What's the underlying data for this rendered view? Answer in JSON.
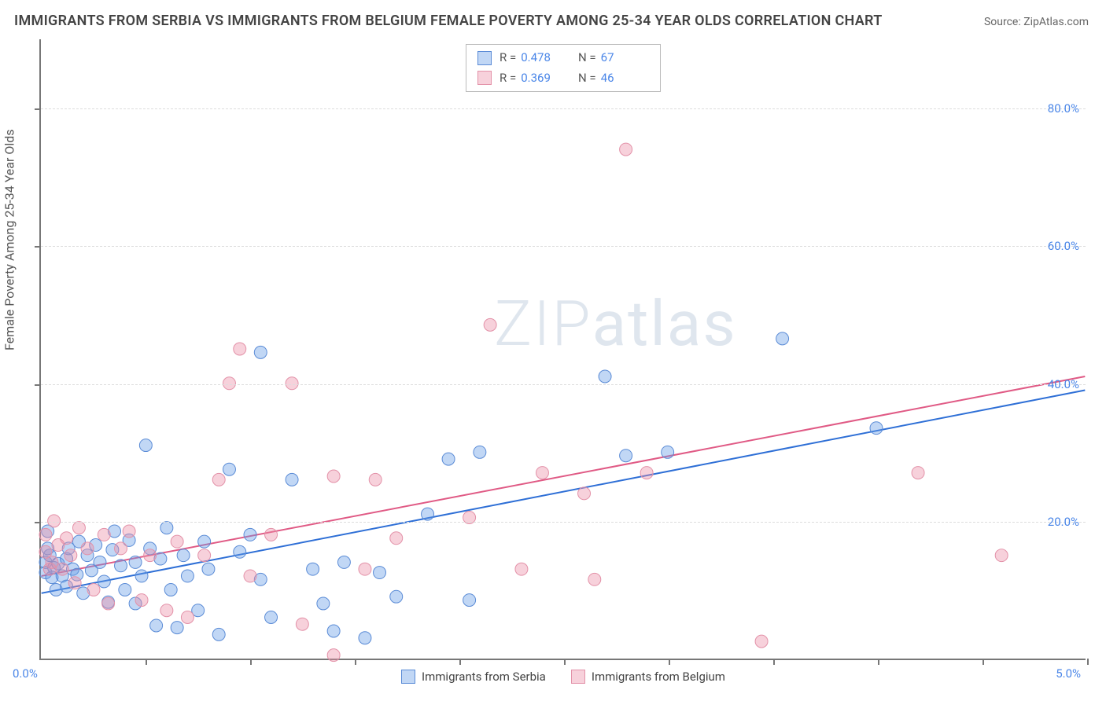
{
  "title": "IMMIGRANTS FROM SERBIA VS IMMIGRANTS FROM BELGIUM FEMALE POVERTY AMONG 25-34 YEAR OLDS CORRELATION CHART",
  "source_label": "Source:",
  "source_value": "ZipAtlas.com",
  "watermark": "ZIPatlas",
  "chart": {
    "type": "scatter",
    "background_color": "#ffffff",
    "grid_color": "#dddddd",
    "axis_color": "#777777",
    "tick_label_color": "#4a86e8",
    "xlim": [
      0.0,
      5.0
    ],
    "ylim": [
      0.0,
      90.0
    ],
    "x_ticks_minor": [
      0.5,
      1.0,
      1.5,
      2.0,
      2.5,
      3.0,
      3.5,
      4.0,
      4.5,
      5.0
    ],
    "x_tick_labels": {
      "start": "0.0%",
      "end": "5.0%"
    },
    "y_gridlines": [
      20,
      40,
      60,
      80
    ],
    "y_tick_labels": [
      "20.0%",
      "40.0%",
      "60.0%",
      "80.0%"
    ],
    "y_axis_label": "Female Poverty Among 25-34 Year Olds",
    "marker_radius": 8,
    "marker_opacity": 0.45,
    "line_width": 2,
    "title_fontsize": 18,
    "label_fontsize": 16,
    "tick_fontsize": 15
  },
  "series": [
    {
      "id": "serbia",
      "label": "Immigrants from Serbia",
      "color_fill": "rgba(100,155,230,0.40)",
      "color_stroke": "#5a8bd6",
      "line_color": "#2e6fd6",
      "R": "0.478",
      "N": "67",
      "trend": {
        "x1": 0.0,
        "y1": 9.5,
        "x2": 5.0,
        "y2": 39.0
      },
      "points": [
        [
          0.02,
          12.5
        ],
        [
          0.02,
          14.0
        ],
        [
          0.04,
          15.0
        ],
        [
          0.05,
          11.8
        ],
        [
          0.06,
          13.2
        ],
        [
          0.07,
          10.0
        ],
        [
          0.08,
          13.8
        ],
        [
          0.1,
          12.0
        ],
        [
          0.12,
          14.5
        ],
        [
          0.12,
          10.5
        ],
        [
          0.13,
          16.0
        ],
        [
          0.15,
          13.0
        ],
        [
          0.17,
          12.2
        ],
        [
          0.18,
          17.0
        ],
        [
          0.2,
          9.5
        ],
        [
          0.22,
          15.0
        ],
        [
          0.24,
          12.8
        ],
        [
          0.26,
          16.5
        ],
        [
          0.28,
          14.0
        ],
        [
          0.3,
          11.2
        ],
        [
          0.32,
          8.2
        ],
        [
          0.34,
          15.8
        ],
        [
          0.35,
          18.5
        ],
        [
          0.38,
          13.5
        ],
        [
          0.4,
          10.0
        ],
        [
          0.42,
          17.2
        ],
        [
          0.45,
          14.0
        ],
        [
          0.45,
          8.0
        ],
        [
          0.48,
          12.0
        ],
        [
          0.5,
          31.0
        ],
        [
          0.52,
          16.0
        ],
        [
          0.55,
          4.8
        ],
        [
          0.57,
          14.5
        ],
        [
          0.6,
          19.0
        ],
        [
          0.62,
          10.0
        ],
        [
          0.65,
          4.5
        ],
        [
          0.68,
          15.0
        ],
        [
          0.7,
          12.0
        ],
        [
          0.75,
          7.0
        ],
        [
          0.78,
          17.0
        ],
        [
          0.8,
          13.0
        ],
        [
          0.85,
          3.5
        ],
        [
          0.9,
          27.5
        ],
        [
          0.95,
          15.5
        ],
        [
          1.0,
          18.0
        ],
        [
          1.05,
          44.5
        ],
        [
          1.05,
          11.5
        ],
        [
          1.1,
          6.0
        ],
        [
          1.2,
          26.0
        ],
        [
          1.3,
          13.0
        ],
        [
          1.35,
          8.0
        ],
        [
          1.4,
          4.0
        ],
        [
          1.45,
          14.0
        ],
        [
          1.55,
          3.0
        ],
        [
          1.62,
          12.5
        ],
        [
          1.7,
          9.0
        ],
        [
          1.85,
          21.0
        ],
        [
          1.95,
          29.0
        ],
        [
          2.05,
          8.5
        ],
        [
          2.1,
          30.0
        ],
        [
          2.7,
          41.0
        ],
        [
          2.8,
          29.5
        ],
        [
          3.0,
          30.0
        ],
        [
          3.55,
          46.5
        ],
        [
          4.0,
          33.5
        ],
        [
          0.03,
          18.5
        ],
        [
          0.03,
          16.0
        ]
      ]
    },
    {
      "id": "belgium",
      "label": "Immigrants from Belgium",
      "color_fill": "rgba(235,140,165,0.40)",
      "color_stroke": "#e391a8",
      "line_color": "#e05a85",
      "R": "0.369",
      "N": "46",
      "trend": {
        "x1": 0.0,
        "y1": 12.0,
        "x2": 5.0,
        "y2": 41.0
      },
      "points": [
        [
          0.02,
          15.5
        ],
        [
          0.02,
          18.0
        ],
        [
          0.05,
          14.0
        ],
        [
          0.06,
          20.0
        ],
        [
          0.08,
          16.5
        ],
        [
          0.1,
          13.0
        ],
        [
          0.12,
          17.5
        ],
        [
          0.14,
          15.0
        ],
        [
          0.16,
          11.0
        ],
        [
          0.18,
          19.0
        ],
        [
          0.22,
          16.0
        ],
        [
          0.25,
          10.0
        ],
        [
          0.3,
          18.0
        ],
        [
          0.32,
          8.0
        ],
        [
          0.38,
          16.0
        ],
        [
          0.42,
          18.5
        ],
        [
          0.48,
          8.5
        ],
        [
          0.52,
          15.0
        ],
        [
          0.6,
          7.0
        ],
        [
          0.65,
          17.0
        ],
        [
          0.7,
          6.0
        ],
        [
          0.78,
          15.0
        ],
        [
          0.85,
          26.0
        ],
        [
          0.95,
          45.0
        ],
        [
          1.0,
          12.0
        ],
        [
          1.1,
          18.0
        ],
        [
          1.2,
          40.0
        ],
        [
          1.25,
          5.0
        ],
        [
          1.4,
          26.5
        ],
        [
          1.4,
          0.5
        ],
        [
          1.55,
          13.0
        ],
        [
          1.6,
          26.0
        ],
        [
          1.7,
          17.5
        ],
        [
          2.05,
          20.5
        ],
        [
          2.15,
          48.5
        ],
        [
          2.3,
          13.0
        ],
        [
          2.4,
          27.0
        ],
        [
          2.65,
          11.5
        ],
        [
          2.6,
          24.0
        ],
        [
          2.8,
          74.0
        ],
        [
          2.9,
          27.0
        ],
        [
          3.45,
          2.5
        ],
        [
          4.2,
          27.0
        ],
        [
          4.6,
          15.0
        ],
        [
          0.04,
          13.0
        ],
        [
          0.9,
          40.0
        ]
      ]
    }
  ],
  "legend_top_labels": {
    "R": "R =",
    "N": "N ="
  }
}
